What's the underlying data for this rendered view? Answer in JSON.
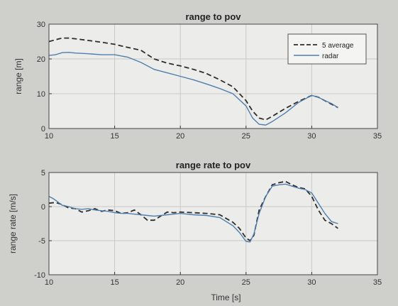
{
  "figure": {
    "background": "#cfcfcc",
    "axes_background": "#ececea",
    "dashed_color": "#2e2e2e",
    "solid_color": "#4f7fae"
  },
  "chart_data": [
    {
      "type": "line",
      "title": "range to pov",
      "xlabel": "",
      "ylabel": "range [m]",
      "xlim": [
        10,
        35
      ],
      "ylim": [
        0,
        30
      ],
      "xticks": [
        10,
        15,
        20,
        25,
        30,
        35
      ],
      "yticks": [
        0,
        10,
        20,
        30
      ],
      "grid": true,
      "legend": "top-right",
      "series": [
        {
          "name": "5 average",
          "style": "dashed",
          "x": [
            10,
            10.5,
            11,
            11.5,
            12,
            13,
            14,
            15,
            16,
            17,
            18,
            19,
            20,
            21,
            22,
            23,
            24,
            25,
            25.5,
            26,
            26.5,
            27,
            28,
            29,
            30,
            30.5,
            31,
            31.5,
            32
          ],
          "y": [
            25,
            25.5,
            26,
            26,
            25.8,
            25.3,
            24.8,
            24.2,
            23.3,
            22.5,
            20,
            18.8,
            18,
            17,
            15.8,
            14,
            12,
            8,
            5,
            3,
            2.5,
            3.5,
            5.8,
            7.8,
            9.5,
            9,
            8,
            7,
            6
          ]
        },
        {
          "name": "radar",
          "style": "solid",
          "x": [
            10,
            10.5,
            11,
            11.5,
            12,
            13,
            14,
            15,
            16,
            17,
            18,
            19,
            20,
            21,
            22,
            23,
            24,
            25,
            25.5,
            26,
            26.5,
            27,
            28,
            29,
            30,
            30.5,
            31,
            31.5,
            32
          ],
          "y": [
            21,
            21.2,
            21.8,
            21.9,
            21.7,
            21.5,
            21.2,
            21.2,
            20.5,
            19,
            17,
            16,
            15,
            14,
            12.8,
            11.5,
            10,
            6.5,
            3,
            1.2,
            1,
            2,
            4.5,
            7.5,
            9.5,
            9,
            8,
            7.2,
            6
          ]
        }
      ]
    },
    {
      "type": "line",
      "title": "range rate to pov",
      "xlabel": "Time [s]",
      "ylabel": "range rate [m/s]",
      "xlim": [
        10,
        35
      ],
      "ylim": [
        -10,
        5
      ],
      "xticks": [
        10,
        15,
        20,
        25,
        30,
        35
      ],
      "yticks": [
        -10,
        -5,
        0,
        5
      ],
      "grid": true,
      "series": [
        {
          "name": "5 average",
          "style": "dashed",
          "x": [
            10,
            10.5,
            11,
            11.5,
            12,
            12.5,
            13,
            13.5,
            14,
            14.5,
            15,
            15.5,
            16,
            16.5,
            17,
            17.5,
            18,
            18.5,
            19,
            19.5,
            20,
            21,
            22,
            23,
            24,
            24.5,
            25,
            25.3,
            25.6,
            26,
            26.5,
            27,
            27.5,
            28,
            28.5,
            29,
            29.5,
            30,
            30.5,
            31,
            31.5,
            32
          ],
          "y": [
            0.5,
            0.6,
            0.3,
            -0.2,
            -0.3,
            -0.8,
            -0.6,
            -0.3,
            -0.7,
            -0.5,
            -0.6,
            -1.0,
            -0.9,
            -0.5,
            -1.2,
            -2.0,
            -2.0,
            -1.4,
            -0.8,
            -0.9,
            -0.8,
            -0.9,
            -1.0,
            -1.2,
            -2.3,
            -3.2,
            -4.6,
            -5.0,
            -4.2,
            -0.5,
            1.5,
            3.2,
            3.5,
            3.7,
            3.2,
            2.8,
            2.6,
            1.5,
            -0.5,
            -2.0,
            -2.5,
            -3.2
          ]
        },
        {
          "name": "radar",
          "style": "solid",
          "x": [
            10,
            10.3,
            10.6,
            11,
            11.5,
            12,
            12.5,
            13,
            13.5,
            14,
            14.5,
            15,
            15.5,
            16,
            16.5,
            17,
            17.5,
            18,
            18.5,
            19,
            19.5,
            20,
            21,
            22,
            23,
            24,
            24.5,
            25,
            25.3,
            25.6,
            26,
            26.5,
            27,
            27.5,
            28,
            28.5,
            29,
            29.5,
            30,
            30.5,
            31,
            31.5,
            32
          ],
          "y": [
            1.5,
            1.2,
            0.8,
            0.2,
            0,
            -0.3,
            -0.4,
            -0.3,
            -0.5,
            -0.6,
            -0.7,
            -0.9,
            -1.0,
            -1.0,
            -1.1,
            -1.2,
            -1.3,
            -1.4,
            -1.3,
            -1.2,
            -1.1,
            -1.0,
            -1.2,
            -1.3,
            -1.6,
            -2.8,
            -3.8,
            -5.1,
            -5.2,
            -4.0,
            -1.0,
            1.5,
            3.0,
            3.2,
            3.3,
            3.0,
            2.7,
            2.5,
            2.0,
            0.5,
            -1.0,
            -2.2,
            -2.5
          ]
        }
      ]
    }
  ]
}
